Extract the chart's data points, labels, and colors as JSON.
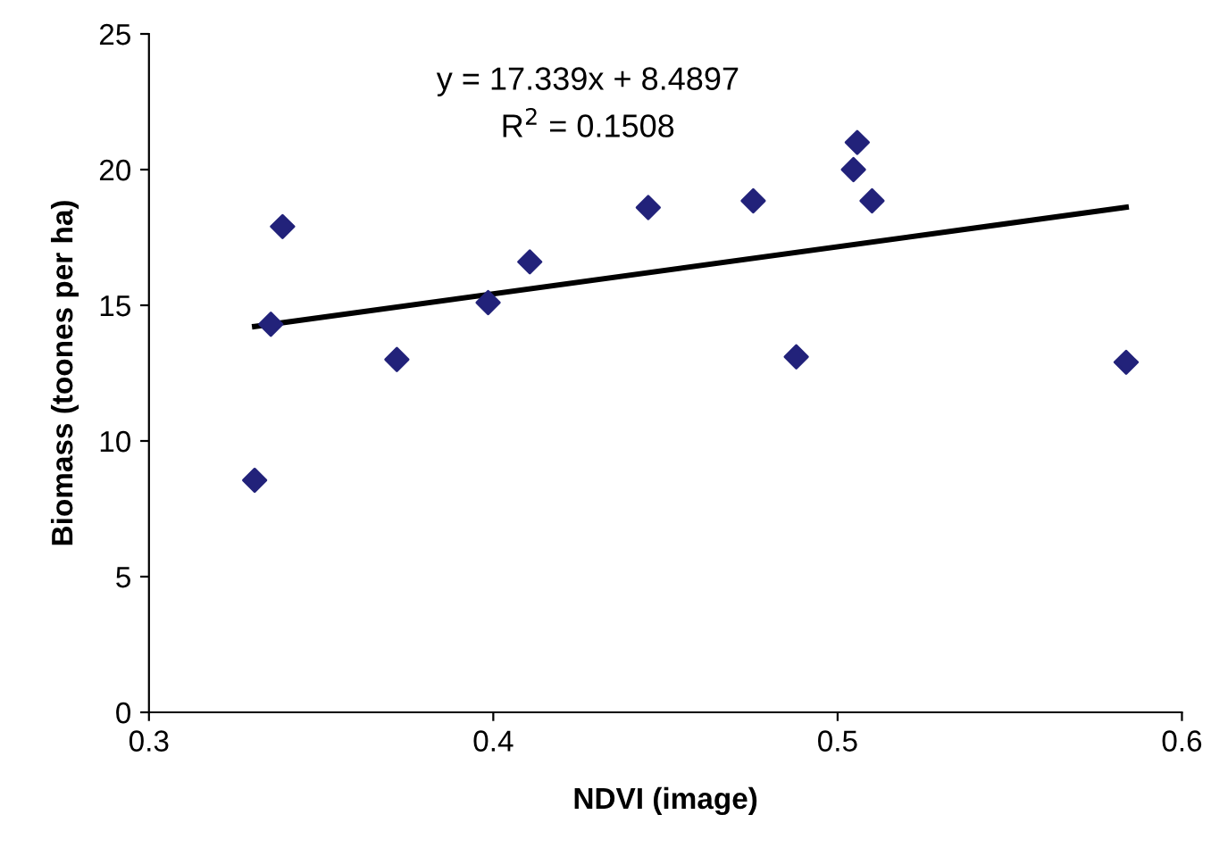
{
  "chart_data": {
    "type": "scatter",
    "xlabel": "NDVI (image)",
    "ylabel": "Biomass (toones per ha)",
    "xlim": [
      0.3,
      0.6
    ],
    "xticks": [
      0.3,
      0.4,
      0.5,
      0.6
    ],
    "ylim": [
      0,
      25
    ],
    "yticks": [
      0,
      5,
      10,
      15,
      20,
      25
    ],
    "grid": false,
    "legend": false,
    "marker": "diamond",
    "series": [
      {
        "color": "#22227a",
        "x": [
          0.3307,
          0.3354,
          0.3388,
          0.372,
          0.3985,
          0.4106,
          0.445,
          0.4755,
          0.488,
          0.5046,
          0.5057,
          0.51,
          0.5838
        ],
        "values": [
          8.55,
          14.3,
          17.9,
          13.0,
          15.1,
          16.6,
          18.6,
          18.85,
          13.1,
          20.0,
          21.0,
          18.85,
          12.9
        ]
      },
      {
        "type": "line",
        "color": "#000000",
        "line_style": "solid",
        "marker": "none",
        "x": [
          0.3307,
          0.5838
        ],
        "values": [
          14.22,
          18.61
        ]
      }
    ],
    "annotations": [
      "y = 17.339x + 8.4897",
      "R$^{2}$ = 0.1508"
    ]
  }
}
